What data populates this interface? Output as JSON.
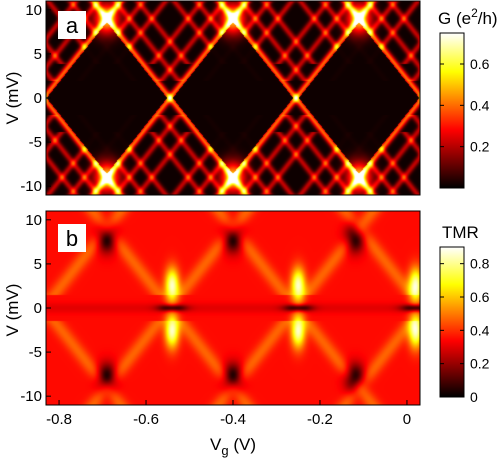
{
  "chart_data": [
    {
      "type": "heatmap",
      "panel_label": "a",
      "colorbar_label": "G (e²/h)",
      "colorbar_ticks": [
        "0.6",
        "0.4",
        "0.2"
      ],
      "colorbar_range": [
        0,
        0.75
      ],
      "colormap": "hot",
      "ylabel": "V (mV)",
      "y_ticks": [
        "10",
        "5",
        "0",
        "-5",
        "-10"
      ],
      "xlim": [
        -0.83,
        0.03
      ],
      "ylim": [
        -11,
        11
      ],
      "features": {
        "coulomb_diamond_centers_vg": [
          -0.69,
          -0.4,
          -0.12
        ],
        "diamond_half_height_mv": 9.0,
        "peak_conductance": 0.75
      }
    },
    {
      "type": "heatmap",
      "panel_label": "b",
      "colorbar_label": "TMR",
      "colorbar_ticks": [
        "0.8",
        "0.6",
        "0.4",
        "0.2",
        "0"
      ],
      "colorbar_range": [
        0,
        0.9
      ],
      "colormap": "hot",
      "xlabel": "V",
      "xlabel_subscript": "g",
      "xlabel_unit": " (V)",
      "ylabel": "V (mV)",
      "x_ticks": [
        "-0.8",
        "-0.6",
        "-0.4",
        "-0.2",
        "0"
      ],
      "y_ticks": [
        "10",
        "5",
        "0",
        "-5",
        "-10"
      ],
      "xlim": [
        -0.83,
        0.03
      ],
      "ylim": [
        -11,
        11
      ],
      "features": {
        "background_tmr": 0.35,
        "bright_lobe_centers_vg": [
          -0.54,
          -0.25,
          0.02
        ],
        "bright_lobe_tmr": 0.85,
        "dark_spot_centers_vg": [
          -0.69,
          -0.4,
          -0.12
        ],
        "dark_spot_v_mv": [
          8.0,
          -8.0
        ],
        "dark_spot_tmr": 0.0
      }
    }
  ],
  "x_values": [
    -0.8,
    -0.6,
    -0.4,
    -0.2,
    0
  ]
}
